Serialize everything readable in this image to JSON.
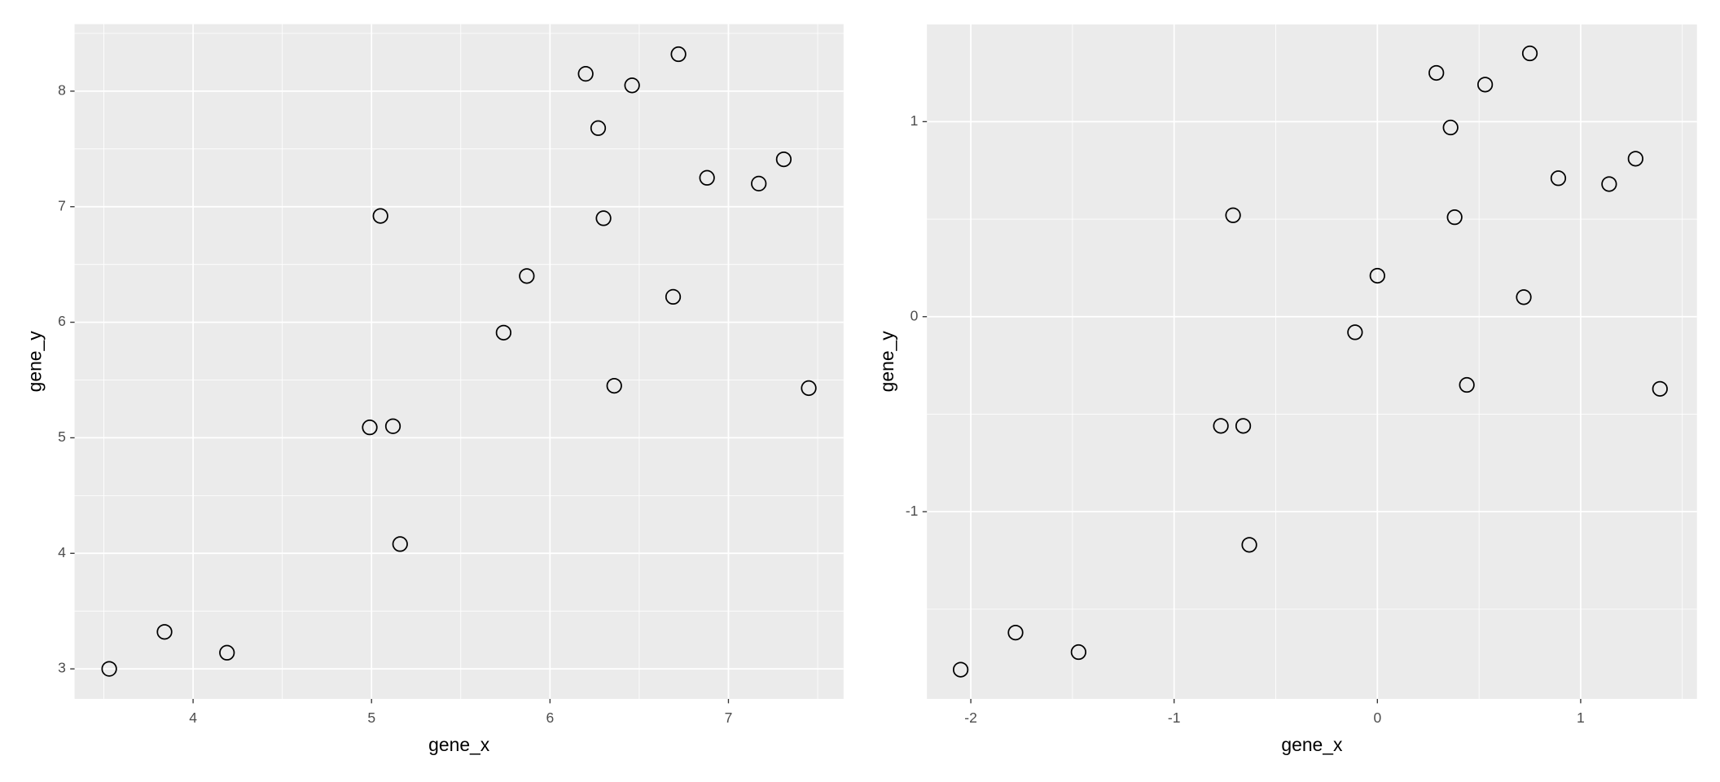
{
  "chart_data": [
    {
      "type": "scatter",
      "xlabel": "gene_x",
      "ylabel": "gene_y",
      "color": "#000000",
      "grid": true,
      "x": [
        3.53,
        3.84,
        4.19,
        4.99,
        5.12,
        5.16,
        5.05,
        5.74,
        5.87,
        6.2,
        6.27,
        6.3,
        6.36,
        6.46,
        6.69,
        6.72,
        6.88,
        7.17,
        7.31,
        7.45
      ],
      "values": [
        3.0,
        3.32,
        3.14,
        5.09,
        5.1,
        4.08,
        6.92,
        5.91,
        6.4,
        8.15,
        7.68,
        6.9,
        5.45,
        8.05,
        6.22,
        8.32,
        7.25,
        7.2,
        7.41,
        5.43
      ],
      "xlim": [
        3.336,
        7.645
      ],
      "ylim": [
        2.74,
        8.58
      ],
      "xticks": [
        4,
        5,
        6,
        7
      ],
      "yticks": [
        3,
        4,
        5,
        6,
        7,
        8
      ]
    },
    {
      "type": "scatter",
      "xlabel": "gene_x",
      "ylabel": "gene_y",
      "color": "#000000",
      "grid": true,
      "x": [
        -2.05,
        -1.78,
        -1.47,
        -0.77,
        -0.66,
        -0.63,
        -0.71,
        -0.11,
        0.0,
        0.29,
        0.36,
        0.38,
        0.44,
        0.53,
        0.72,
        0.75,
        0.89,
        1.14,
        1.27,
        1.39
      ],
      "values": [
        -1.81,
        -1.62,
        -1.72,
        -0.56,
        -0.56,
        -1.17,
        0.52,
        -0.08,
        0.21,
        1.25,
        0.97,
        0.51,
        -0.35,
        1.19,
        0.1,
        1.35,
        0.71,
        0.68,
        0.81,
        -0.37
      ],
      "xlim": [
        -2.216,
        1.572
      ],
      "ylim": [
        -1.96,
        1.5
      ],
      "xticks": [
        -2,
        -1,
        0,
        1
      ],
      "yticks": [
        -1,
        0,
        1
      ]
    }
  ]
}
